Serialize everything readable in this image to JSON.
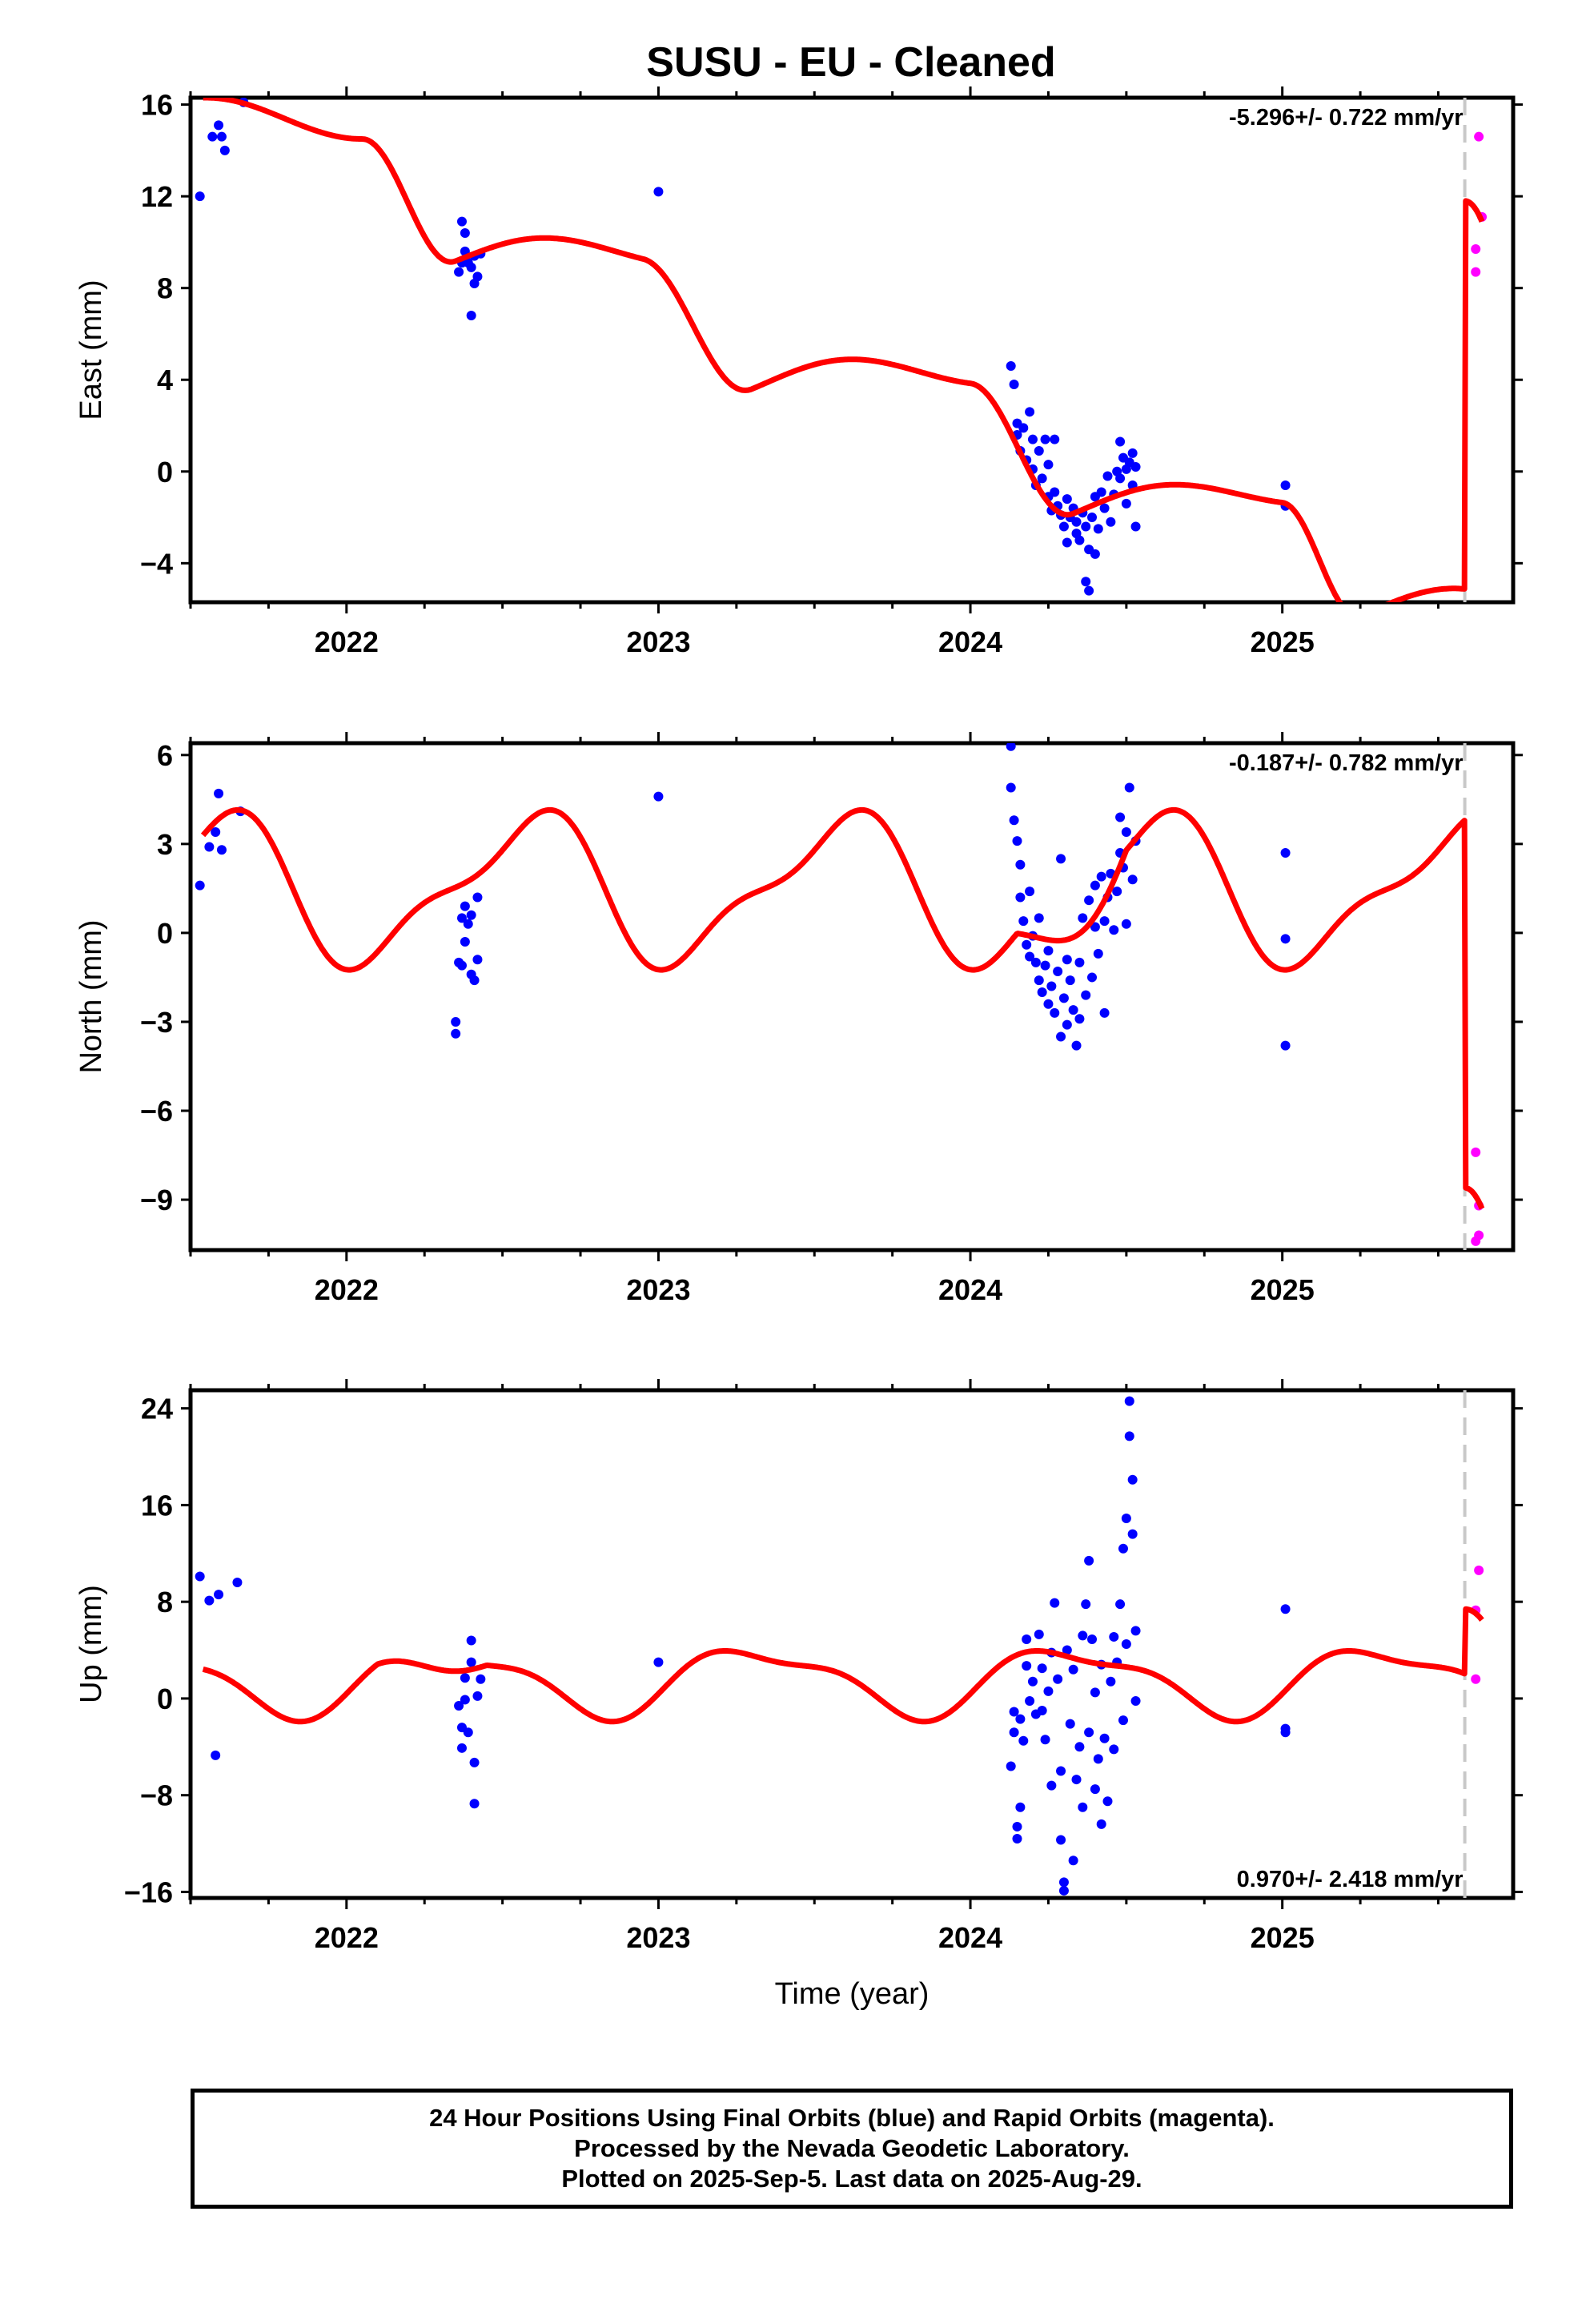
{
  "title": "SUSU  - EU - Cleaned",
  "caption": [
    "24 Hour Positions Using Final Orbits (blue) and Rapid Orbits (magenta).",
    "Processed by the Nevada Geodetic Laboratory.",
    "Plotted on 2025-Sep-5. Last data on 2025-Aug-29."
  ],
  "colors": {
    "final": "#0000ff",
    "rapid": "#ff00ff",
    "model": "#ff0000",
    "dashed": "#c8c8c8"
  },
  "chart_data": [
    {
      "type": "scatter",
      "ylabel": "East (mm)",
      "xlabel": "",
      "xlim": [
        2021.5,
        2025.74
      ],
      "ylim": [
        -5.7,
        16.3
      ],
      "yticks": [
        16,
        12,
        8,
        4,
        0,
        -4
      ],
      "xticks": [
        2022,
        2023,
        2024,
        2025
      ],
      "rate_label": "-5.296+/- 0.722 mm/yr",
      "rate_position": "top-right",
      "break_epoch": 2025.585,
      "final_points": [
        [
          2021.53,
          12.0
        ],
        [
          2021.57,
          14.6
        ],
        [
          2021.59,
          15.1
        ],
        [
          2021.6,
          14.6
        ],
        [
          2021.61,
          14.0
        ],
        [
          2021.67,
          16.1
        ],
        [
          2022.36,
          8.7
        ],
        [
          2022.37,
          9.1
        ],
        [
          2022.37,
          10.9
        ],
        [
          2022.38,
          10.4
        ],
        [
          2022.38,
          9.6
        ],
        [
          2022.39,
          9.1
        ],
        [
          2022.4,
          8.9
        ],
        [
          2022.4,
          6.8
        ],
        [
          2022.41,
          8.2
        ],
        [
          2022.41,
          9.4
        ],
        [
          2022.42,
          8.5
        ],
        [
          2022.43,
          9.5
        ],
        [
          2023.0,
          12.2
        ],
        [
          2024.13,
          4.6
        ],
        [
          2024.14,
          3.8
        ],
        [
          2024.15,
          2.1
        ],
        [
          2024.15,
          1.6
        ],
        [
          2024.16,
          0.9
        ],
        [
          2024.17,
          1.9
        ],
        [
          2024.18,
          0.5
        ],
        [
          2024.19,
          2.6
        ],
        [
          2024.2,
          1.4
        ],
        [
          2024.2,
          0.1
        ],
        [
          2024.21,
          -0.6
        ],
        [
          2024.22,
          0.9
        ],
        [
          2024.23,
          -0.3
        ],
        [
          2024.24,
          1.4
        ],
        [
          2024.25,
          -1.1
        ],
        [
          2024.25,
          0.3
        ],
        [
          2024.26,
          -1.7
        ],
        [
          2024.27,
          1.4
        ],
        [
          2024.27,
          -0.9
        ],
        [
          2024.28,
          -1.5
        ],
        [
          2024.29,
          -1.9
        ],
        [
          2024.3,
          -2.4
        ],
        [
          2024.31,
          -1.2
        ],
        [
          2024.31,
          -3.1
        ],
        [
          2024.32,
          -2.0
        ],
        [
          2024.33,
          -1.6
        ],
        [
          2024.34,
          -2.7
        ],
        [
          2024.34,
          -2.2
        ],
        [
          2024.35,
          -3.0
        ],
        [
          2024.36,
          -1.8
        ],
        [
          2024.37,
          -2.4
        ],
        [
          2024.37,
          -4.8
        ],
        [
          2024.38,
          -5.2
        ],
        [
          2024.38,
          -3.4
        ],
        [
          2024.39,
          -2.0
        ],
        [
          2024.4,
          -1.1
        ],
        [
          2024.4,
          -3.6
        ],
        [
          2024.41,
          -2.5
        ],
        [
          2024.42,
          -0.9
        ],
        [
          2024.43,
          -1.6
        ],
        [
          2024.44,
          -0.2
        ],
        [
          2024.45,
          -2.2
        ],
        [
          2024.46,
          -1.0
        ],
        [
          2024.47,
          0.0
        ],
        [
          2024.48,
          1.3
        ],
        [
          2024.48,
          -0.3
        ],
        [
          2024.49,
          0.6
        ],
        [
          2024.5,
          0.1
        ],
        [
          2024.5,
          -1.4
        ],
        [
          2024.51,
          0.4
        ],
        [
          2024.52,
          -0.6
        ],
        [
          2024.52,
          0.8
        ],
        [
          2024.53,
          -2.4
        ],
        [
          2024.53,
          0.2
        ],
        [
          2025.01,
          -0.6
        ],
        [
          2025.01,
          -1.5
        ]
      ],
      "rapid_points": [
        [
          2025.63,
          14.6
        ],
        [
          2025.62,
          9.7
        ],
        [
          2025.62,
          8.7
        ],
        [
          2025.64,
          11.1
        ]
      ]
    },
    {
      "type": "scatter",
      "ylabel": "North (mm)",
      "xlabel": "",
      "xlim": [
        2021.5,
        2025.74
      ],
      "ylim": [
        -10.7,
        6.4
      ],
      "yticks": [
        6,
        3,
        0,
        -3,
        -6,
        -9
      ],
      "xticks": [
        2022,
        2023,
        2024,
        2025
      ],
      "rate_label": "-0.187+/- 0.782 mm/yr",
      "rate_position": "top-right",
      "break_epoch": 2025.585,
      "final_points": [
        [
          2021.53,
          1.6
        ],
        [
          2021.56,
          2.9
        ],
        [
          2021.58,
          3.4
        ],
        [
          2021.59,
          4.7
        ],
        [
          2021.6,
          2.8
        ],
        [
          2021.66,
          4.1
        ],
        [
          2022.35,
          -3.0
        ],
        [
          2022.35,
          -3.4
        ],
        [
          2022.36,
          -1.0
        ],
        [
          2022.37,
          0.5
        ],
        [
          2022.37,
          -1.1
        ],
        [
          2022.38,
          -0.3
        ],
        [
          2022.38,
          0.9
        ],
        [
          2022.39,
          0.3
        ],
        [
          2022.4,
          -1.4
        ],
        [
          2022.4,
          0.6
        ],
        [
          2022.41,
          -1.6
        ],
        [
          2022.42,
          1.2
        ],
        [
          2022.42,
          -0.9
        ],
        [
          2023.0,
          4.6
        ],
        [
          2024.13,
          6.3
        ],
        [
          2024.13,
          4.9
        ],
        [
          2024.14,
          3.8
        ],
        [
          2024.15,
          3.1
        ],
        [
          2024.16,
          2.3
        ],
        [
          2024.16,
          1.2
        ],
        [
          2024.17,
          0.4
        ],
        [
          2024.18,
          -0.4
        ],
        [
          2024.19,
          -0.8
        ],
        [
          2024.19,
          1.4
        ],
        [
          2024.2,
          -0.1
        ],
        [
          2024.21,
          -1.0
        ],
        [
          2024.22,
          -1.6
        ],
        [
          2024.22,
          0.5
        ],
        [
          2024.23,
          -2.0
        ],
        [
          2024.24,
          -1.1
        ],
        [
          2024.25,
          -2.4
        ],
        [
          2024.25,
          -0.6
        ],
        [
          2024.26,
          -1.8
        ],
        [
          2024.27,
          -2.7
        ],
        [
          2024.28,
          -1.3
        ],
        [
          2024.29,
          2.5
        ],
        [
          2024.29,
          -3.5
        ],
        [
          2024.3,
          -2.2
        ],
        [
          2024.31,
          -0.9
        ],
        [
          2024.31,
          -3.1
        ],
        [
          2024.32,
          -1.6
        ],
        [
          2024.33,
          -2.6
        ],
        [
          2024.34,
          -3.8
        ],
        [
          2024.35,
          -1.0
        ],
        [
          2024.35,
          -2.9
        ],
        [
          2024.36,
          0.5
        ],
        [
          2024.37,
          -2.1
        ],
        [
          2024.38,
          1.1
        ],
        [
          2024.39,
          -1.5
        ],
        [
          2024.4,
          1.6
        ],
        [
          2024.4,
          0.2
        ],
        [
          2024.41,
          -0.7
        ],
        [
          2024.42,
          1.9
        ],
        [
          2024.43,
          -2.7
        ],
        [
          2024.43,
          0.4
        ],
        [
          2024.44,
          1.2
        ],
        [
          2024.45,
          2.0
        ],
        [
          2024.46,
          0.1
        ],
        [
          2024.47,
          1.4
        ],
        [
          2024.48,
          2.7
        ],
        [
          2024.48,
          3.9
        ],
        [
          2024.49,
          2.2
        ],
        [
          2024.5,
          3.4
        ],
        [
          2024.5,
          0.3
        ],
        [
          2024.51,
          4.9
        ],
        [
          2024.52,
          1.8
        ],
        [
          2024.53,
          3.1
        ],
        [
          2025.01,
          2.7
        ],
        [
          2025.01,
          -0.2
        ],
        [
          2025.01,
          -3.8
        ]
      ],
      "rapid_points": [
        [
          2025.62,
          -7.4
        ],
        [
          2025.63,
          -10.2
        ],
        [
          2025.62,
          -10.4
        ],
        [
          2025.63,
          -9.2
        ]
      ]
    },
    {
      "type": "scatter",
      "ylabel": "Up (mm)",
      "xlabel": "Time (year)",
      "xlim": [
        2021.5,
        2025.74
      ],
      "ylim": [
        -16.5,
        25.5
      ],
      "yticks": [
        24,
        16,
        8,
        0,
        -8,
        -16
      ],
      "xticks": [
        2022,
        2023,
        2024,
        2025
      ],
      "rate_label": "0.970+/- 2.418 mm/yr",
      "rate_position": "bottom-right",
      "break_epoch": 2025.585,
      "final_points": [
        [
          2021.53,
          10.1
        ],
        [
          2021.56,
          8.1
        ],
        [
          2021.58,
          -4.7
        ],
        [
          2021.59,
          8.6
        ],
        [
          2021.65,
          9.6
        ],
        [
          2022.36,
          -0.6
        ],
        [
          2022.37,
          -4.1
        ],
        [
          2022.37,
          -2.4
        ],
        [
          2022.38,
          1.7
        ],
        [
          2022.38,
          -0.1
        ],
        [
          2022.39,
          -2.8
        ],
        [
          2022.4,
          3.0
        ],
        [
          2022.4,
          4.8
        ],
        [
          2022.41,
          -5.3
        ],
        [
          2022.41,
          -8.7
        ],
        [
          2022.42,
          0.2
        ],
        [
          2022.43,
          1.6
        ],
        [
          2023.0,
          3.0
        ],
        [
          2024.13,
          -5.6
        ],
        [
          2024.14,
          -1.1
        ],
        [
          2024.14,
          -2.8
        ],
        [
          2024.15,
          -10.6
        ],
        [
          2024.15,
          -11.6
        ],
        [
          2024.16,
          -9.0
        ],
        [
          2024.16,
          -1.7
        ],
        [
          2024.17,
          -3.5
        ],
        [
          2024.18,
          2.7
        ],
        [
          2024.18,
          4.9
        ],
        [
          2024.19,
          -0.2
        ],
        [
          2024.2,
          1.4
        ],
        [
          2024.21,
          -1.3
        ],
        [
          2024.22,
          5.3
        ],
        [
          2024.23,
          -1.0
        ],
        [
          2024.23,
          2.5
        ],
        [
          2024.24,
          -3.4
        ],
        [
          2024.25,
          0.6
        ],
        [
          2024.26,
          3.8
        ],
        [
          2024.26,
          -7.2
        ],
        [
          2024.27,
          7.9
        ],
        [
          2024.28,
          1.6
        ],
        [
          2024.29,
          -11.7
        ],
        [
          2024.29,
          -6.0
        ],
        [
          2024.3,
          -15.9
        ],
        [
          2024.3,
          -15.2
        ],
        [
          2024.31,
          4.0
        ],
        [
          2024.32,
          -2.1
        ],
        [
          2024.33,
          2.4
        ],
        [
          2024.33,
          -13.4
        ],
        [
          2024.34,
          -6.7
        ],
        [
          2024.35,
          -4.0
        ],
        [
          2024.36,
          5.2
        ],
        [
          2024.36,
          -9.0
        ],
        [
          2024.37,
          7.8
        ],
        [
          2024.38,
          11.4
        ],
        [
          2024.38,
          -2.8
        ],
        [
          2024.39,
          4.9
        ],
        [
          2024.4,
          -7.5
        ],
        [
          2024.4,
          0.5
        ],
        [
          2024.41,
          -5.0
        ],
        [
          2024.42,
          -10.4
        ],
        [
          2024.42,
          2.8
        ],
        [
          2024.43,
          -3.3
        ],
        [
          2024.44,
          -8.5
        ],
        [
          2024.45,
          1.4
        ],
        [
          2024.46,
          5.1
        ],
        [
          2024.46,
          -4.2
        ],
        [
          2024.47,
          3.0
        ],
        [
          2024.48,
          7.8
        ],
        [
          2024.49,
          12.4
        ],
        [
          2024.49,
          -1.8
        ],
        [
          2024.5,
          14.9
        ],
        [
          2024.5,
          4.5
        ],
        [
          2024.51,
          24.6
        ],
        [
          2024.51,
          21.7
        ],
        [
          2024.52,
          18.1
        ],
        [
          2024.52,
          13.6
        ],
        [
          2024.53,
          5.6
        ],
        [
          2024.53,
          -0.2
        ],
        [
          2025.01,
          7.4
        ],
        [
          2025.01,
          -2.5
        ],
        [
          2025.01,
          -2.8
        ]
      ],
      "rapid_points": [
        [
          2025.63,
          10.6
        ],
        [
          2025.62,
          7.3
        ],
        [
          2025.62,
          1.6
        ]
      ]
    }
  ]
}
